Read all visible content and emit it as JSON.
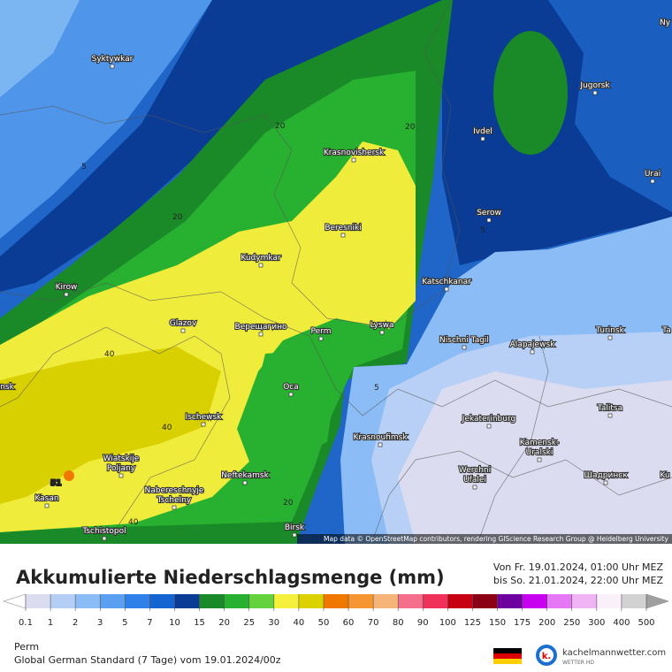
{
  "map": {
    "cities": [
      [
        "Syktywkar"
      ],
      [
        "Jugorsk"
      ],
      [
        "Ivdel"
      ],
      [
        "Krasnovishersk"
      ],
      [
        "Urai"
      ],
      [
        "Serow"
      ],
      [
        "Beresniki"
      ],
      [
        "Kudymkar"
      ],
      [
        "Katschkanar"
      ],
      [
        "Kirow"
      ],
      [
        "Glazov"
      ],
      [
        "Верещагино"
      ],
      [
        "Perm"
      ],
      [
        "Lyswa"
      ],
      [
        "Nischni Tagil"
      ],
      [
        "Alapajewsk"
      ],
      [
        "Turinsk"
      ],
      [
        "Oca"
      ],
      [
        "Talitsa"
      ],
      [
        "Ischewsk"
      ],
      [
        "Jekaterinburg"
      ],
      [
        "Krasnoufimsk"
      ],
      [
        "Kamensk-",
        "Uralski"
      ],
      [
        "Wiatskije",
        "Poljany"
      ],
      [
        "Neftekamsk"
      ],
      [
        "Werchni",
        "Ufalei"
      ],
      [
        "Шадринск"
      ],
      [
        "Naberesсhnyje",
        "Tschelny"
      ],
      [
        "Kasan"
      ],
      [
        "Birsk"
      ],
      [
        "Tschistopol"
      ],
      [
        "Ny"
      ],
      [
        "Ta"
      ],
      [
        "nsk"
      ],
      [
        "Ku"
      ]
    ],
    "contour_labels": [
      "20",
      "20",
      "5",
      "20",
      "5",
      "40",
      "5",
      "40",
      "20",
      "40",
      "51"
    ],
    "attribution": "Map data © OpenStreetMap contributors, rendering GIScience Research Group @ Heidelberg University"
  },
  "legend": {
    "title": "Akkumulierte Niederschlagsmenge (mm)",
    "period": [
      "Von Fr. 19.01.2024, 01:00 Uhr MEZ",
      "bis So. 21.01.2024, 22:00 Uhr MEZ"
    ],
    "ticks": [
      0.1,
      1,
      2,
      3,
      5,
      7,
      10,
      15,
      20,
      25,
      30,
      40,
      50,
      60,
      70,
      80,
      90,
      100,
      125,
      150,
      175,
      200,
      250,
      300,
      400,
      500
    ],
    "colors": [
      "#ffffff",
      "#dcdcf0",
      "#b4cef5",
      "#8cbcf5",
      "#5a9ff0",
      "#2f80e8",
      "#1464d2",
      "#0a3c96",
      "#1a8a28",
      "#28b030",
      "#64d23c",
      "#f5f03c",
      "#dcd200",
      "#f07800",
      "#f59632",
      "#f5b478",
      "#f56e8c",
      "#f0325a",
      "#c80014",
      "#8c0014",
      "#6e00a0",
      "#c800f0",
      "#e678f5",
      "#f0b4f5",
      "#faf0fa",
      "#d2d2d2",
      "#a0a0a0"
    ]
  },
  "footer": {
    "location": "Perm",
    "model": "Global German Standard (7 Tage) vom 19.01.2024/00z",
    "brand": "kachelmannwetter.com",
    "brand_sub": "WETTER HD"
  }
}
